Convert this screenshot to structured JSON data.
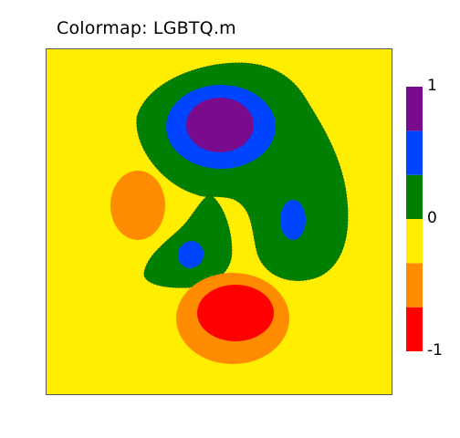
{
  "title": "Colormap: LGBTQ.m",
  "chart_data": {
    "type": "contourf",
    "colormap": "LGBTQ",
    "levels": [
      -1,
      -0.6667,
      -0.3333,
      0,
      0.3333,
      0.6667,
      1
    ],
    "level_colors": [
      "#ff0000",
      "#ff8c00",
      "#ffee00",
      "#008000",
      "#0044ff",
      "#7a0b8c"
    ],
    "colorbar": {
      "ticks": [
        {
          "value": 1,
          "label": "1"
        },
        {
          "value": 0,
          "label": "0"
        },
        {
          "value": -1,
          "label": "-1"
        }
      ]
    },
    "grid": false,
    "axis_ticks": false
  }
}
